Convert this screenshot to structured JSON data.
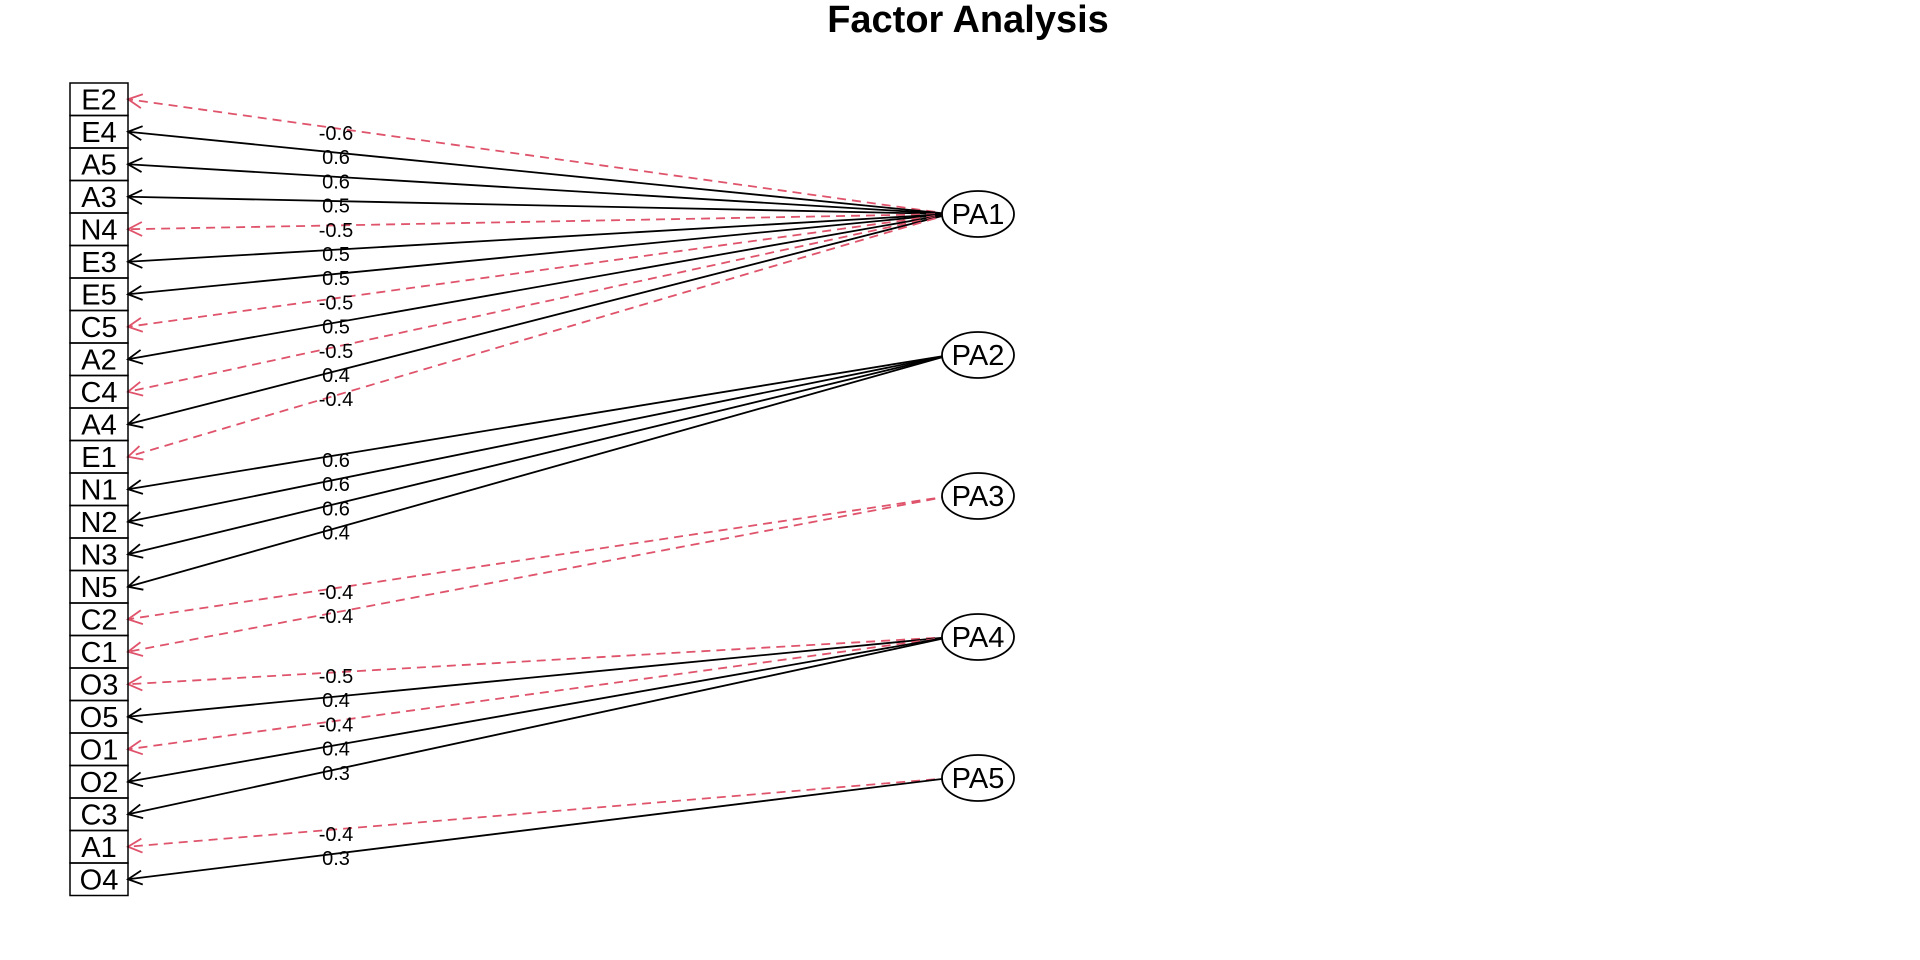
{
  "title": "Factor Analysis",
  "colors": {
    "positive": "#000000",
    "negative": "#DF536B"
  },
  "variables": [
    "E2",
    "E4",
    "A5",
    "A3",
    "N4",
    "E3",
    "E5",
    "C5",
    "A2",
    "C4",
    "A4",
    "E1",
    "N1",
    "N2",
    "N3",
    "N5",
    "C2",
    "C1",
    "O3",
    "O5",
    "O1",
    "O2",
    "C3",
    "A1",
    "O4"
  ],
  "factors": [
    "PA1",
    "PA2",
    "PA3",
    "PA4",
    "PA5"
  ],
  "loadings": [
    {
      "variable": "E2",
      "factor": "PA1",
      "value": -0.6,
      "label": "-0.6"
    },
    {
      "variable": "E4",
      "factor": "PA1",
      "value": 0.6,
      "label": "0.6"
    },
    {
      "variable": "A5",
      "factor": "PA1",
      "value": 0.6,
      "label": "0.6"
    },
    {
      "variable": "A3",
      "factor": "PA1",
      "value": 0.5,
      "label": "0.5"
    },
    {
      "variable": "N4",
      "factor": "PA1",
      "value": -0.5,
      "label": "-0.5"
    },
    {
      "variable": "E3",
      "factor": "PA1",
      "value": 0.5,
      "label": "0.5"
    },
    {
      "variable": "E5",
      "factor": "PA1",
      "value": 0.5,
      "label": "0.5"
    },
    {
      "variable": "C5",
      "factor": "PA1",
      "value": -0.5,
      "label": "-0.5"
    },
    {
      "variable": "A2",
      "factor": "PA1",
      "value": 0.5,
      "label": "0.5"
    },
    {
      "variable": "C4",
      "factor": "PA1",
      "value": -0.5,
      "label": "-0.5"
    },
    {
      "variable": "A4",
      "factor": "PA1",
      "value": 0.4,
      "label": "0.4"
    },
    {
      "variable": "E1",
      "factor": "PA1",
      "value": -0.4,
      "label": "-0.4"
    },
    {
      "variable": "N1",
      "factor": "PA2",
      "value": 0.6,
      "label": "0.6"
    },
    {
      "variable": "N2",
      "factor": "PA2",
      "value": 0.6,
      "label": "0.6"
    },
    {
      "variable": "N3",
      "factor": "PA2",
      "value": 0.6,
      "label": "0.6"
    },
    {
      "variable": "N5",
      "factor": "PA2",
      "value": 0.4,
      "label": "0.4"
    },
    {
      "variable": "C2",
      "factor": "PA3",
      "value": -0.4,
      "label": "-0.4"
    },
    {
      "variable": "C1",
      "factor": "PA3",
      "value": -0.4,
      "label": "-0.4"
    },
    {
      "variable": "O3",
      "factor": "PA4",
      "value": -0.5,
      "label": "-0.5"
    },
    {
      "variable": "O5",
      "factor": "PA4",
      "value": 0.4,
      "label": "0.4"
    },
    {
      "variable": "O1",
      "factor": "PA4",
      "value": -0.4,
      "label": "-0.4"
    },
    {
      "variable": "O2",
      "factor": "PA4",
      "value": 0.4,
      "label": "0.4"
    },
    {
      "variable": "C3",
      "factor": "PA4",
      "value": 0.3,
      "label": "0.3"
    },
    {
      "variable": "A1",
      "factor": "PA5",
      "value": -0.4,
      "label": "-0.4"
    },
    {
      "variable": "O4",
      "factor": "PA5",
      "value": 0.3,
      "label": "0.3"
    }
  ]
}
